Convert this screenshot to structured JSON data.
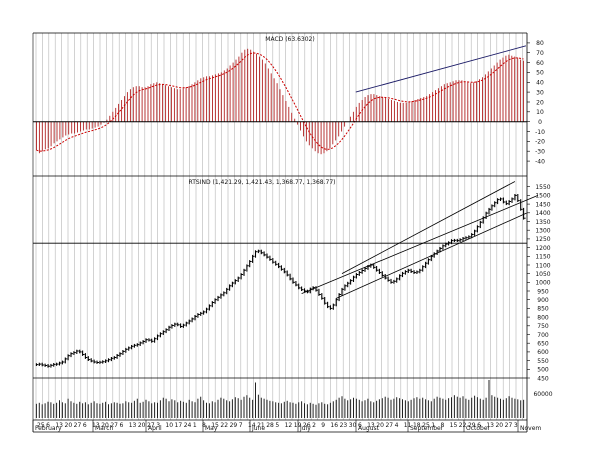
{
  "chart_data": [
    {
      "type": "bar",
      "title": "MACD (63.6302)",
      "ylim": [
        -45,
        90
      ],
      "y_ticks": [
        -40,
        -30,
        -20,
        -10,
        0,
        10,
        20,
        30,
        40,
        50,
        60,
        70,
        80
      ],
      "series": [
        {
          "values": [
            -29,
            -32,
            -30,
            -28,
            -27,
            -25,
            -22,
            -20,
            -18,
            -16,
            -14,
            -13,
            -12,
            -12,
            -11,
            -10,
            -9,
            -8,
            -8,
            -7,
            -6,
            -5,
            -3,
            -1,
            2,
            6,
            10,
            14,
            18,
            22,
            26,
            30,
            33,
            35,
            36,
            36,
            35,
            35,
            36,
            38,
            39,
            40,
            39,
            38,
            37,
            36,
            35,
            34,
            33,
            33,
            34,
            35,
            36,
            38,
            40,
            42,
            44,
            45,
            46,
            46,
            47,
            48,
            49,
            50,
            52,
            54,
            57,
            60,
            63,
            66,
            70,
            73,
            74,
            73,
            71,
            69,
            66,
            63,
            59,
            54,
            49,
            44,
            39,
            33,
            27,
            21,
            15,
            9,
            3,
            -3,
            -9,
            -15,
            -20,
            -24,
            -27,
            -30,
            -32,
            -33,
            -32,
            -30,
            -27,
            -23,
            -19,
            -15,
            -10,
            -5,
            0,
            5,
            10,
            15,
            19,
            22,
            25,
            27,
            28,
            28,
            27,
            26,
            25,
            24,
            23,
            22,
            21,
            20,
            19,
            19,
            19,
            20,
            21,
            22,
            23,
            24,
            25,
            26,
            28,
            30,
            32,
            34,
            36,
            38,
            39,
            40,
            41,
            42,
            42,
            42,
            41,
            40,
            39,
            40,
            41,
            43,
            45,
            48,
            51,
            54,
            57,
            60,
            63,
            65,
            67,
            68,
            67,
            66,
            65,
            63,
            62
          ]
        }
      ]
    },
    {
      "type": "line",
      "title": "RTSIND (1,421.29, 1,421.43, 1,368.77, 1,368.77)",
      "x_ticks": [
        "February",
        "March",
        "April",
        "May",
        "June",
        "July",
        "August",
        "September",
        "October",
        "Novem"
      ],
      "ylim": [
        450,
        1600
      ],
      "y_ticks": [
        450,
        500,
        550,
        600,
        650,
        700,
        750,
        800,
        850,
        900,
        950,
        1000,
        1050,
        1100,
        1150,
        1200,
        1250,
        1300,
        1350,
        1400,
        1450,
        1500,
        1550
      ],
      "reference_line": 1225,
      "series": [
        {
          "values": [
            527,
            530,
            525,
            522,
            518,
            523,
            528,
            530,
            536,
            542,
            560,
            578,
            590,
            596,
            605,
            600,
            585,
            568,
            556,
            548,
            542,
            539,
            541,
            544,
            549,
            555,
            563,
            568,
            580,
            590,
            603,
            615,
            623,
            632,
            638,
            642,
            652,
            660,
            670,
            668,
            661,
            676,
            692,
            705,
            716,
            728,
            742,
            752,
            760,
            756,
            746,
            754,
            766,
            778,
            790,
            804,
            815,
            822,
            830,
            846,
            865,
            884,
            900,
            914,
            928,
            940,
            960,
            980,
            996,
            1010,
            1025,
            1045,
            1070,
            1095,
            1120,
            1150,
            1176,
            1180,
            1170,
            1158,
            1145,
            1132,
            1116,
            1104,
            1090,
            1075,
            1060,
            1042,
            1020,
            1000,
            985,
            968,
            958,
            950,
            945,
            962,
            970,
            955,
            930,
            908,
            880,
            860,
            850,
            870,
            900,
            930,
            960,
            980,
            995,
            1010,
            1030,
            1045,
            1057,
            1068,
            1080,
            1092,
            1100,
            1086,
            1070,
            1056,
            1040,
            1025,
            1012,
            1000,
            1006,
            1020,
            1038,
            1052,
            1062,
            1070,
            1062,
            1056,
            1060,
            1070,
            1090,
            1110,
            1130,
            1150,
            1165,
            1180,
            1195,
            1210,
            1220,
            1228,
            1240,
            1242,
            1240,
            1245,
            1253,
            1257,
            1262,
            1275,
            1295,
            1320,
            1346,
            1372,
            1398,
            1420,
            1440,
            1458,
            1476,
            1480,
            1462,
            1452,
            1465,
            1480,
            1500,
            1470,
            1420,
            1369
          ]
        }
      ]
    },
    {
      "type": "bar",
      "title": "",
      "y_ticks": [
        "60000"
      ],
      "series": [
        {
          "values": [
            28,
            30,
            27,
            29,
            32,
            31,
            28,
            30,
            35,
            31,
            29,
            38,
            33,
            30,
            28,
            32,
            29,
            31,
            27,
            30,
            33,
            29,
            28,
            30,
            32,
            27,
            29,
            31,
            30,
            28,
            29,
            33,
            31,
            30,
            34,
            38,
            30,
            32,
            36,
            33,
            29,
            31,
            30,
            35,
            40,
            38,
            33,
            37,
            35,
            31,
            34,
            32,
            30,
            36,
            33,
            31,
            38,
            42,
            35,
            30,
            29,
            33,
            31,
            36,
            40,
            38,
            35,
            33,
            37,
            41,
            39,
            36,
            42,
            45,
            40,
            36,
            70,
            46,
            40,
            38,
            36,
            34,
            33,
            31,
            30,
            29,
            32,
            34,
            31,
            30,
            28,
            31,
            33,
            29,
            27,
            30,
            28,
            26,
            29,
            31,
            28,
            27,
            30,
            33,
            36,
            40,
            43,
            38,
            35,
            37,
            40,
            38,
            36,
            33,
            35,
            38,
            33,
            31,
            34,
            37,
            39,
            42,
            40,
            36,
            38,
            41,
            39,
            37,
            35,
            33,
            36,
            39,
            41,
            38,
            40,
            37,
            35,
            33,
            38,
            42,
            40,
            38,
            36,
            39,
            41,
            45,
            42,
            40,
            43,
            38,
            36,
            40,
            44,
            41,
            38,
            36,
            40,
            75,
            45,
            42,
            40,
            38,
            36,
            39,
            43,
            40,
            38,
            37,
            35,
            36
          ]
        }
      ]
    }
  ],
  "colors": {
    "macd_bar": "#b22222",
    "signal_line": "#cc0000",
    "price": "#000000",
    "channel": "#000000",
    "grid": "#b4b4b4",
    "background": "#ffffff"
  }
}
